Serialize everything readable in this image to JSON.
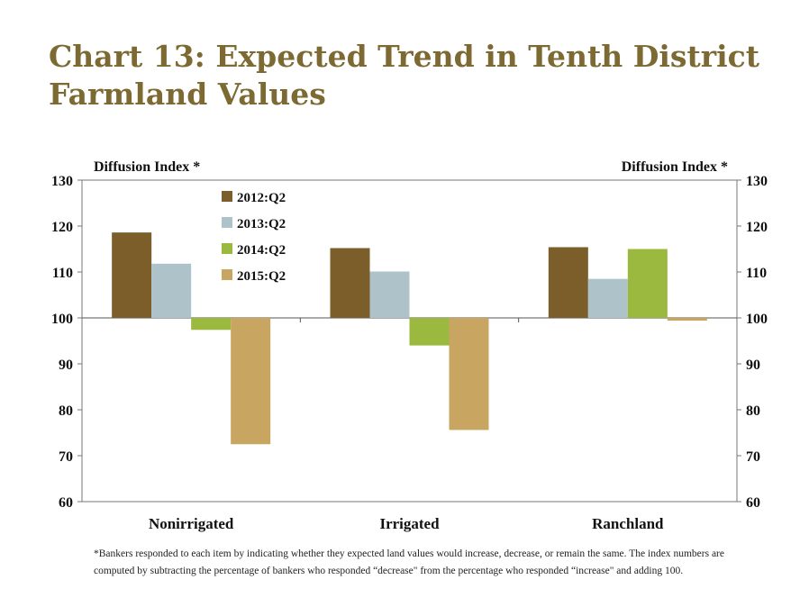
{
  "title_line1": "Chart 13: Expected Trend in Tenth District",
  "title_line2": "Farmland Values",
  "footnote": "*Bankers responded to each item by indicating whether they expected land values would increase, decrease, or remain the same. The index numbers are computed by subtracting the percentage of bankers who responded “decrease\" from the percentage who responded “increase\" and adding 100.",
  "chart_data": {
    "type": "bar",
    "categories": [
      "Nonirrigated",
      "Irrigated",
      "Ranchland"
    ],
    "baseline": 100,
    "series": [
      {
        "name": "2012:Q2",
        "color": "#7b5e2a",
        "values": [
          118.6,
          115.2,
          115.4
        ]
      },
      {
        "name": "2013:Q2",
        "color": "#aec3c9",
        "values": [
          111.8,
          110.1,
          108.5
        ]
      },
      {
        "name": "2014:Q2",
        "color": "#9bb83f",
        "values": [
          97.4,
          94.0,
          115.0
        ]
      },
      {
        "name": "2015:Q2",
        "color": "#c8a661",
        "values": [
          72.5,
          75.6,
          99.4
        ]
      }
    ],
    "ylabel_left": "Diffusion Index *",
    "ylabel_right": "Diffusion Index *",
    "ylim": [
      60,
      130
    ],
    "yticks": [
      60,
      70,
      80,
      90,
      100,
      110,
      120,
      130
    ],
    "legend_position": "top-left"
  }
}
